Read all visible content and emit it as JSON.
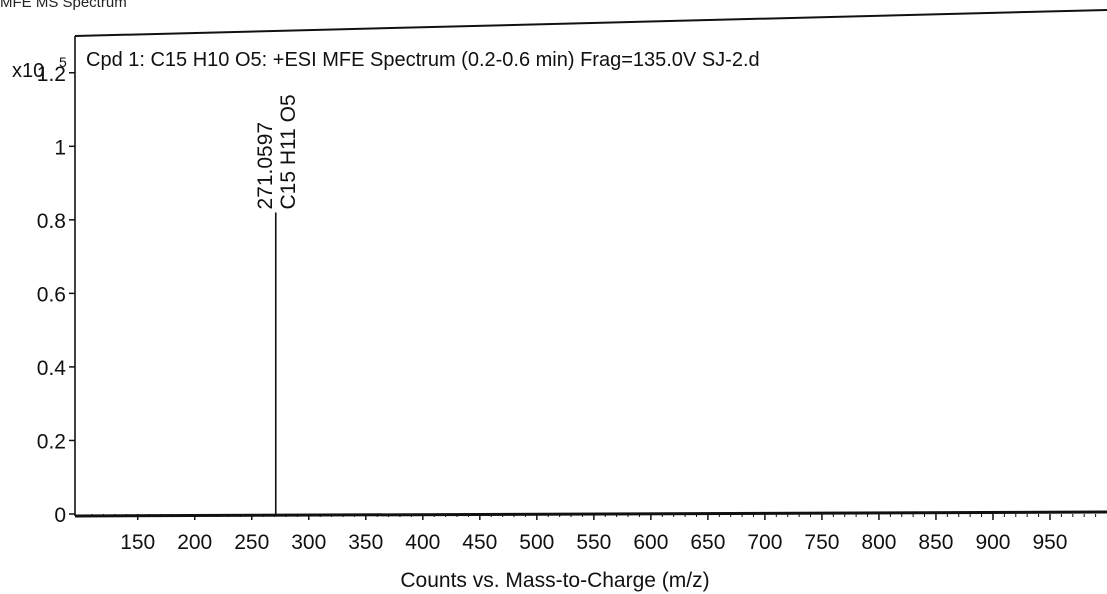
{
  "page_title": "MFE MS Spectrum",
  "chart_data": {
    "type": "bar",
    "title": "Cpd 1: C15 H10 O5: +ESI MFE Spectrum (0.2-0.6 min) Frag=135.0V SJ-2.d",
    "xlabel": "Counts vs. Mass-to-Charge (m/z)",
    "ylabel": "",
    "y_multiplier": "x10",
    "y_exponent": "5",
    "xlim": [
      95,
      1000
    ],
    "ylim": [
      0,
      1.3
    ],
    "x_ticks": [
      150,
      200,
      250,
      300,
      350,
      400,
      450,
      500,
      550,
      600,
      650,
      700,
      750,
      800,
      850,
      900,
      950
    ],
    "y_ticks": [
      {
        "value": 0,
        "label": "0"
      },
      {
        "value": 0.2,
        "label": "0.2"
      },
      {
        "value": 0.4,
        "label": "0.4"
      },
      {
        "value": 0.6,
        "label": "0.6"
      },
      {
        "value": 0.8,
        "label": "0.8"
      },
      {
        "value": 1,
        "label": "1"
      },
      {
        "value": 1.2,
        "label": "1.2"
      }
    ],
    "peaks": [
      {
        "x": 271.0597,
        "y": 0.82,
        "label": "271.0597",
        "formula": "C15 H11 O5"
      }
    ],
    "grid": false,
    "line_color": "#111111"
  }
}
